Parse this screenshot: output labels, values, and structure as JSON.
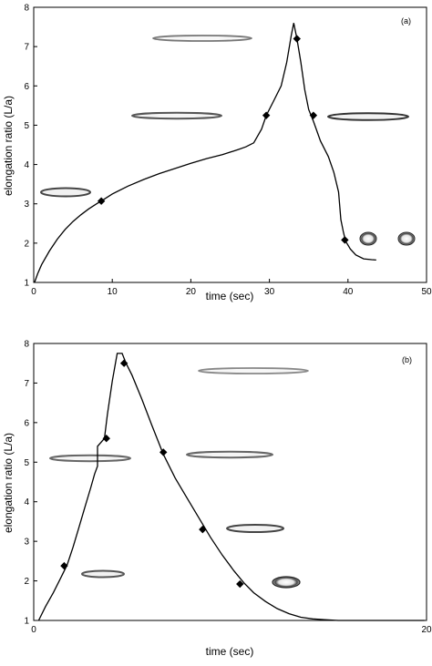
{
  "chart_data": [
    {
      "type": "line",
      "panel_label": "(a)",
      "xlabel": "time (sec)",
      "ylabel": "elongation ratio (L/a)",
      "xlim": [
        0,
        50
      ],
      "ylim": [
        1,
        8
      ],
      "xticks": [
        0,
        10,
        20,
        30,
        40,
        50
      ],
      "yticks": [
        1,
        2,
        3,
        4,
        5,
        6,
        7,
        8
      ],
      "series": [
        {
          "x": [
            0.1,
            0.5,
            1,
            2,
            3,
            4,
            5,
            6,
            7,
            8,
            8.6,
            10,
            12,
            14,
            16,
            18,
            20,
            22,
            24,
            26,
            27,
            28,
            29,
            29.6,
            30.5,
            31.5,
            32.2,
            32.8,
            33.1,
            33.5,
            34,
            34.5,
            35,
            35.6,
            36.5,
            37.5,
            38.2,
            38.8,
            39.1,
            39.4,
            39.7,
            40.3,
            41,
            42,
            43,
            43.6
          ],
          "y": [
            1.0,
            1.22,
            1.45,
            1.8,
            2.1,
            2.35,
            2.55,
            2.72,
            2.87,
            3.0,
            3.07,
            3.25,
            3.45,
            3.62,
            3.77,
            3.9,
            4.03,
            4.15,
            4.25,
            4.38,
            4.45,
            4.55,
            4.9,
            5.25,
            5.6,
            6.0,
            6.6,
            7.3,
            7.6,
            7.2,
            6.6,
            5.9,
            5.4,
            5.1,
            4.6,
            4.2,
            3.8,
            3.3,
            2.6,
            2.3,
            2.05,
            1.85,
            1.7,
            1.6,
            1.58,
            1.57
          ]
        }
      ],
      "markers": [
        {
          "x": 8.6,
          "y": 3.07
        },
        {
          "x": 29.6,
          "y": 5.25
        },
        {
          "x": 33.5,
          "y": 7.2
        },
        {
          "x": 35.6,
          "y": 5.25
        },
        {
          "x": 39.6,
          "y": 2.08
        }
      ]
    },
    {
      "type": "line",
      "panel_label": "(b)",
      "xlabel": "time (sec)",
      "ylabel": "elongation ratio (L/a)",
      "xlim": [
        0,
        20
      ],
      "ylim": [
        1,
        8
      ],
      "xticks": [
        0,
        20
      ],
      "yticks": [
        1,
        2,
        3,
        4,
        5,
        6,
        7,
        8
      ],
      "series": [
        {
          "x": [
            0.25,
            0.6,
            1.0,
            1.4,
            1.7,
            2.0,
            2.3,
            2.6,
            2.9,
            3.1,
            3.25,
            3.25,
            3.6,
            3.75,
            4.0,
            4.25,
            4.5,
            4.7,
            5.0,
            5.5,
            6.0,
            6.6,
            7.2,
            7.8,
            8.4,
            9.0,
            9.6,
            10.2,
            10.7,
            11.2,
            11.8,
            12.4,
            13.0,
            13.6,
            14.2,
            14.8,
            15.5,
            16.5,
            17.5,
            19.9
          ],
          "y": [
            1.0,
            1.35,
            1.7,
            2.1,
            2.4,
            2.85,
            3.35,
            3.85,
            4.35,
            4.7,
            4.9,
            5.4,
            5.6,
            6.2,
            7.05,
            7.75,
            7.75,
            7.5,
            7.2,
            6.6,
            5.95,
            5.2,
            4.6,
            4.1,
            3.6,
            3.1,
            2.65,
            2.25,
            1.95,
            1.7,
            1.48,
            1.3,
            1.17,
            1.08,
            1.04,
            1.02,
            1.0,
            1.0,
            1.0,
            1.0
          ]
        }
      ],
      "markers": [
        {
          "x": 1.55,
          "y": 2.38
        },
        {
          "x": 3.7,
          "y": 5.6
        },
        {
          "x": 4.6,
          "y": 7.5
        },
        {
          "x": 6.6,
          "y": 5.25
        },
        {
          "x": 8.6,
          "y": 3.3
        },
        {
          "x": 10.5,
          "y": 1.92
        }
      ]
    }
  ]
}
